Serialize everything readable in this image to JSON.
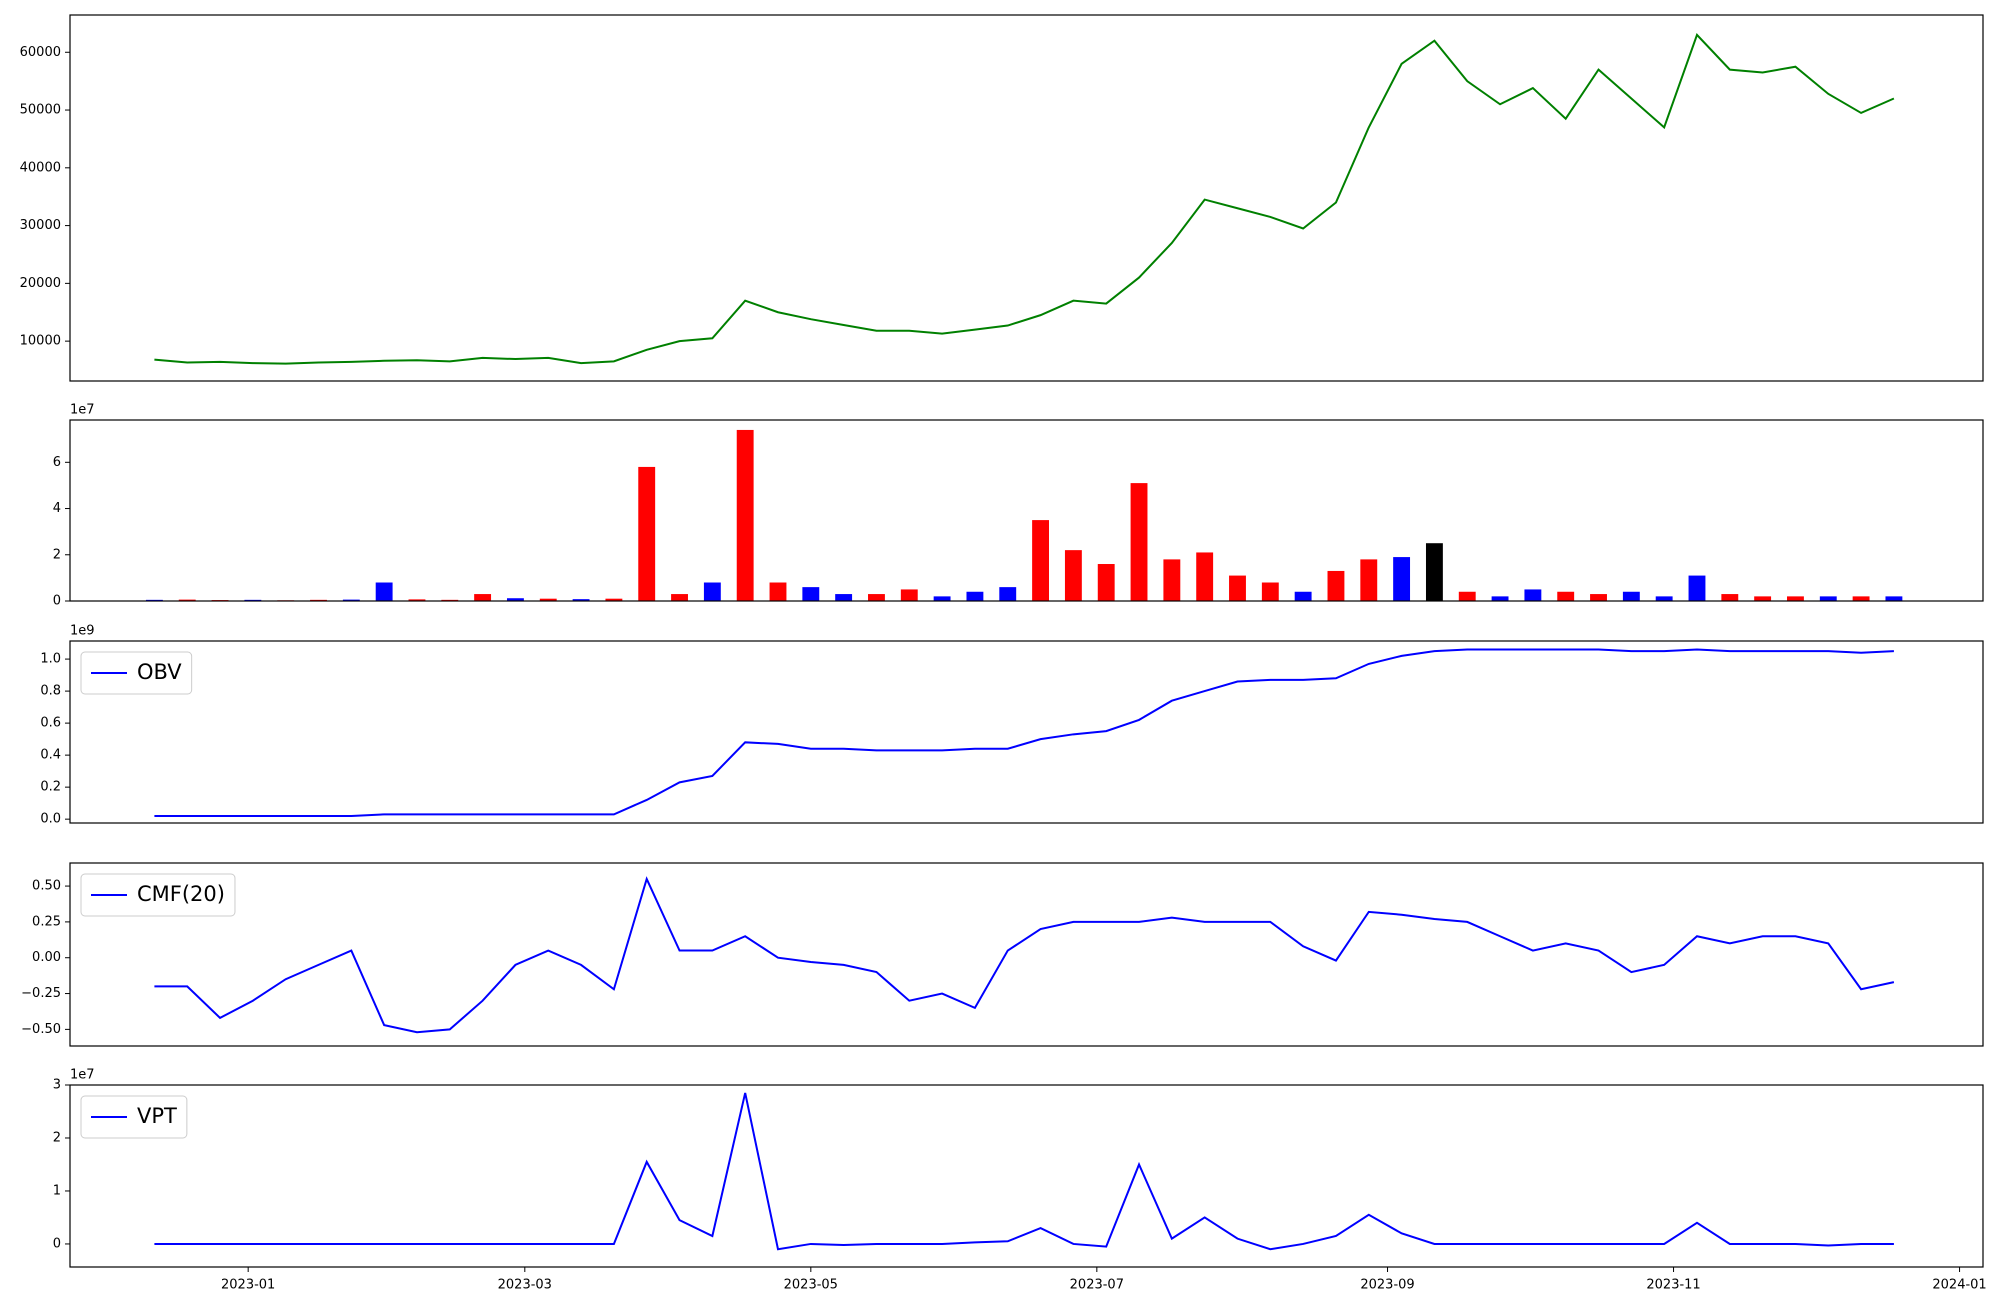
{
  "chart_data": [
    {
      "type": "line",
      "x": [
        19338,
        19345,
        19352,
        19359,
        19366,
        19373,
        19380,
        19387,
        19394,
        19401,
        19408,
        19415,
        19422,
        19429,
        19436,
        19443,
        19450,
        19457,
        19464,
        19471,
        19478,
        19485,
        19492,
        19499,
        19506,
        19513,
        19520,
        19527,
        19534,
        19541,
        19548,
        19555,
        19562,
        19569,
        19576,
        19583,
        19590,
        19597,
        19604,
        19611,
        19618,
        19625,
        19632,
        19639,
        19646,
        19653,
        19660,
        19667,
        19674,
        19681,
        19688,
        19695,
        19702,
        19709
      ],
      "series": [
        {
          "color": "#008000",
          "values": [
            6800,
            6300,
            6400,
            6200,
            6100,
            6300,
            6400,
            6600,
            6700,
            6500,
            7100,
            6900,
            7100,
            6200,
            6500,
            8500,
            10000,
            10500,
            17000,
            15000,
            13800,
            12800,
            11800,
            11800,
            11300,
            12000,
            12700,
            14500,
            17000,
            16500,
            21000,
            27000,
            34500,
            33000,
            31500,
            29500,
            34000,
            47000,
            58000,
            62000,
            55000,
            51000,
            53800,
            48500,
            57000,
            52000,
            47000,
            63000,
            57000,
            56500,
            57500,
            52800,
            49500,
            52000
          ]
        }
      ],
      "xlim": [
        19320,
        19728
      ],
      "ylim": [
        3100,
        66450
      ],
      "yticks": [
        10000,
        20000,
        30000,
        40000,
        50000,
        60000
      ]
    },
    {
      "type": "bar",
      "x": [
        19338,
        19345,
        19352,
        19359,
        19366,
        19373,
        19380,
        19387,
        19394,
        19401,
        19408,
        19415,
        19422,
        19429,
        19436,
        19443,
        19450,
        19457,
        19464,
        19471,
        19478,
        19485,
        19492,
        19499,
        19506,
        19513,
        19520,
        19527,
        19534,
        19541,
        19548,
        19555,
        19562,
        19569,
        19576,
        19583,
        19590,
        19597,
        19604,
        19611,
        19618,
        19625,
        19632,
        19639,
        19646,
        19653,
        19660,
        19667,
        19674,
        19681,
        19688,
        19695,
        19702,
        19709
      ],
      "values": [
        500000,
        600000,
        400000,
        500000,
        300000,
        500000,
        600000,
        8000000,
        700000,
        500000,
        3000000,
        1200000,
        1000000,
        800000,
        1000000,
        58000000,
        3000000,
        8000000,
        74000000,
        8000000,
        6000000,
        3000000,
        3000000,
        5000000,
        2000000,
        4000000,
        6000000,
        35000000,
        22000000,
        16000000,
        51000000,
        18000000,
        21000000,
        11000000,
        8000000,
        4000000,
        13000000,
        18000000,
        19000000,
        25000000,
        4000000,
        2000000,
        5000000,
        4000000,
        3000000,
        4000000,
        2000000,
        11000000,
        3000000,
        2000000,
        2000000,
        2000000,
        2000000,
        2000000
      ],
      "colors": [
        "blue",
        "red",
        "red",
        "blue",
        "red",
        "red",
        "blue",
        "blue",
        "red",
        "red",
        "red",
        "blue",
        "red",
        "blue",
        "red",
        "red",
        "red",
        "blue",
        "red",
        "red",
        "blue",
        "blue",
        "red",
        "red",
        "blue",
        "blue",
        "blue",
        "red",
        "red",
        "red",
        "red",
        "red",
        "red",
        "red",
        "red",
        "blue",
        "red",
        "red",
        "blue",
        "black",
        "red",
        "blue",
        "blue",
        "red",
        "red",
        "blue",
        "blue",
        "blue",
        "red",
        "red",
        "red",
        "blue",
        "red",
        "blue"
      ],
      "xlim": [
        19320,
        19728
      ],
      "ylim": [
        0,
        78300000
      ],
      "y_offset_label": "1e7",
      "yticks": [
        {
          "value": 0,
          "label": "0"
        },
        {
          "value": 20000000,
          "label": "2"
        },
        {
          "value": 40000000,
          "label": "4"
        },
        {
          "value": 60000000,
          "label": "6"
        }
      ]
    },
    {
      "type": "line",
      "x": [
        19338,
        19345,
        19352,
        19359,
        19366,
        19373,
        19380,
        19387,
        19394,
        19401,
        19408,
        19415,
        19422,
        19429,
        19436,
        19443,
        19450,
        19457,
        19464,
        19471,
        19478,
        19485,
        19492,
        19499,
        19506,
        19513,
        19520,
        19527,
        19534,
        19541,
        19548,
        19555,
        19562,
        19569,
        19576,
        19583,
        19590,
        19597,
        19604,
        19611,
        19618,
        19625,
        19632,
        19639,
        19646,
        19653,
        19660,
        19667,
        19674,
        19681,
        19688,
        19695,
        19702,
        19709
      ],
      "series": [
        {
          "name": "OBV",
          "color": "#0000ff",
          "values": [
            20000000,
            20000000,
            20000000,
            20000000,
            20000000,
            20000000,
            20000000,
            30000000,
            30000000,
            30000000,
            30000000,
            30000000,
            30000000,
            30000000,
            30000000,
            120000000,
            230000000,
            270000000,
            480000000,
            470000000,
            440000000,
            440000000,
            430000000,
            430000000,
            430000000,
            440000000,
            440000000,
            500000000,
            530000000,
            550000000,
            620000000,
            740000000,
            800000000,
            860000000,
            870000000,
            870000000,
            880000000,
            970000000,
            1020000000,
            1050000000,
            1060000000,
            1060000000,
            1060000000,
            1060000000,
            1060000000,
            1050000000,
            1050000000,
            1060000000,
            1050000000,
            1050000000,
            1050000000,
            1050000000,
            1040000000,
            1050000000
          ]
        }
      ],
      "xlim": [
        19320,
        19728
      ],
      "ylim": [
        -24000000,
        1113000000
      ],
      "y_offset_label": "1e9",
      "legend": "upper left",
      "yticks": [
        {
          "value": 0,
          "label": "0.0"
        },
        {
          "value": 200000000,
          "label": "0.2"
        },
        {
          "value": 400000000,
          "label": "0.4"
        },
        {
          "value": 600000000,
          "label": "0.6"
        },
        {
          "value": 800000000,
          "label": "0.8"
        },
        {
          "value": 1000000000,
          "label": "1.0"
        }
      ]
    },
    {
      "type": "line",
      "x": [
        19338,
        19345,
        19352,
        19359,
        19366,
        19373,
        19380,
        19387,
        19394,
        19401,
        19408,
        19415,
        19422,
        19429,
        19436,
        19443,
        19450,
        19457,
        19464,
        19471,
        19478,
        19485,
        19492,
        19499,
        19506,
        19513,
        19520,
        19527,
        19534,
        19541,
        19548,
        19555,
        19562,
        19569,
        19576,
        19583,
        19590,
        19597,
        19604,
        19611,
        19618,
        19625,
        19632,
        19639,
        19646,
        19653,
        19660,
        19667,
        19674,
        19681,
        19688,
        19695,
        19702,
        19709
      ],
      "series": [
        {
          "name": "CMF(20)",
          "color": "#0000ff",
          "values": [
            -0.2,
            -0.2,
            -0.42,
            -0.3,
            -0.15,
            -0.05,
            0.05,
            -0.47,
            -0.52,
            -0.5,
            -0.3,
            -0.05,
            0.05,
            -0.05,
            -0.22,
            0.55,
            0.05,
            0.05,
            0.15,
            0.0,
            -0.03,
            -0.05,
            -0.1,
            -0.3,
            -0.25,
            -0.35,
            0.05,
            0.2,
            0.25,
            0.25,
            0.25,
            0.28,
            0.25,
            0.25,
            0.25,
            0.08,
            -0.02,
            0.32,
            0.3,
            0.27,
            0.25,
            0.15,
            0.05,
            0.1,
            0.05,
            -0.1,
            -0.05,
            0.15,
            0.1,
            0.15,
            0.15,
            0.1,
            -0.22,
            -0.17
          ]
        }
      ],
      "xlim": [
        19320,
        19728
      ],
      "ylim": [
        -0.616,
        0.661
      ],
      "legend": "upper left",
      "yticks": [
        {
          "value": -0.5,
          "label": "−0.50"
        },
        {
          "value": -0.25,
          "label": "−0.25"
        },
        {
          "value": 0,
          "label": "0.00"
        },
        {
          "value": 0.25,
          "label": "0.25"
        },
        {
          "value": 0.5,
          "label": "0.50"
        }
      ]
    },
    {
      "type": "line",
      "x": [
        19338,
        19345,
        19352,
        19359,
        19366,
        19373,
        19380,
        19387,
        19394,
        19401,
        19408,
        19415,
        19422,
        19429,
        19436,
        19443,
        19450,
        19457,
        19464,
        19471,
        19478,
        19485,
        19492,
        19499,
        19506,
        19513,
        19520,
        19527,
        19534,
        19541,
        19548,
        19555,
        19562,
        19569,
        19576,
        19583,
        19590,
        19597,
        19604,
        19611,
        19618,
        19625,
        19632,
        19639,
        19646,
        19653,
        19660,
        19667,
        19674,
        19681,
        19688,
        19695,
        19702,
        19709
      ],
      "series": [
        {
          "name": "VPT",
          "color": "#0000ff",
          "values": [
            0,
            0,
            0,
            0,
            0,
            0,
            0,
            0,
            0,
            0,
            0,
            0,
            0,
            0,
            0,
            15500000,
            4500000,
            1500000,
            28500000,
            -1000000,
            0,
            -200000,
            0,
            0,
            0,
            300000,
            500000,
            3000000,
            0,
            -500000,
            15000000,
            1000000,
            5000000,
            1000000,
            -1000000,
            0,
            1500000,
            5500000,
            2000000,
            0,
            0,
            0,
            0,
            0,
            0,
            0,
            0,
            4000000,
            0,
            0,
            0,
            -300000,
            0,
            0
          ]
        }
      ],
      "xlim": [
        19320,
        19728
      ],
      "ylim": [
        -4350000,
        30000000
      ],
      "y_offset_label": "1e7",
      "legend": "upper left",
      "yticks": [
        {
          "value": 0,
          "label": "0"
        },
        {
          "value": 10000000,
          "label": "1"
        },
        {
          "value": 20000000,
          "label": "2"
        },
        {
          "value": 30000000,
          "label": "3"
        }
      ],
      "xticks": [
        {
          "value": 19358,
          "label": "2023-01"
        },
        {
          "value": 19417,
          "label": "2023-03"
        },
        {
          "value": 19478,
          "label": "2023-05"
        },
        {
          "value": 19539,
          "label": "2023-07"
        },
        {
          "value": 19601,
          "label": "2023-09"
        },
        {
          "value": 19662,
          "label": "2023-11"
        },
        {
          "value": 19723,
          "label": "2024-01"
        }
      ]
    }
  ]
}
